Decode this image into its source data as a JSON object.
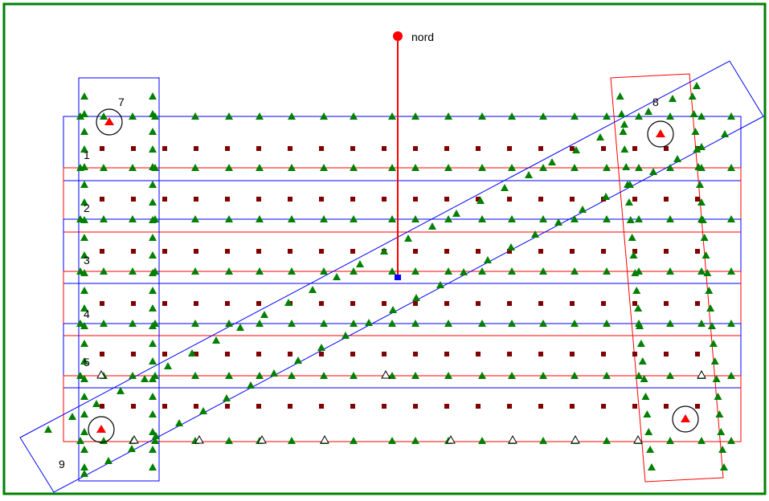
{
  "diagram": {
    "north_label": "nord",
    "strip_labels": [
      "1",
      "2",
      "3",
      "4",
      "5",
      "7",
      "8",
      "9"
    ],
    "colors": {
      "border": "#008000",
      "blue_strip": "#0000ff",
      "red_strip": "#ff0000",
      "north": "#ff0000",
      "tie_point": "#800000",
      "gcp_triangle": "#008000",
      "control_triangle": "#ffffff",
      "control_point": "#ff0000"
    }
  }
}
